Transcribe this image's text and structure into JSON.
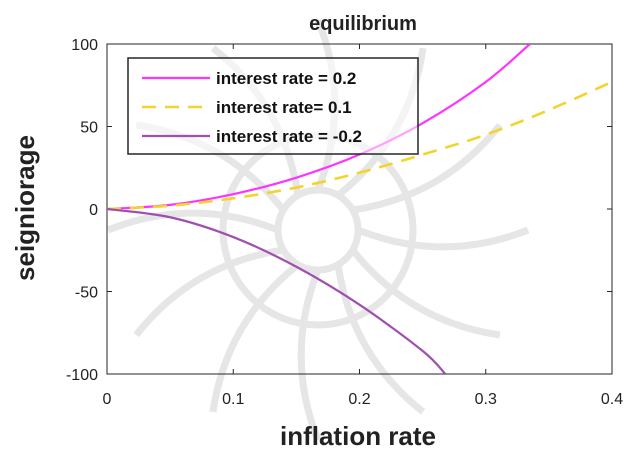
{
  "chart_data": {
    "type": "line",
    "title": "equilibrium",
    "xlabel": "inflation rate",
    "ylabel": "seigniorage",
    "xlim": [
      0,
      0.4
    ],
    "ylim": [
      -100,
      100
    ],
    "xticks": [
      0,
      0.1,
      0.2,
      0.3,
      0.4
    ],
    "xtick_labels": [
      "0",
      "0.1",
      "0.2",
      "0.3",
      "0.4"
    ],
    "yticks": [
      -100,
      -50,
      0,
      50,
      100
    ],
    "ytick_labels": [
      "-100",
      "-50",
      "0",
      "50",
      "100"
    ],
    "grid": false,
    "legend_position": "top-left",
    "series": [
      {
        "name": "interest rate = 0.2",
        "color": "#ff33ff",
        "style": "solid",
        "x": [
          0,
          0.05,
          0.1,
          0.15,
          0.2,
          0.25,
          0.3,
          0.335
        ],
        "y": [
          0,
          2.5,
          9,
          19,
          33,
          52,
          77,
          100
        ]
      },
      {
        "name": "interest rate= 0.1",
        "color": "#f2d52a",
        "style": "dashed",
        "x": [
          0,
          0.05,
          0.1,
          0.15,
          0.2,
          0.25,
          0.3,
          0.35,
          0.4
        ],
        "y": [
          0,
          2,
          6.5,
          13,
          22,
          33,
          45,
          60,
          77
        ]
      },
      {
        "name": "interest rate = -0.2",
        "color": "#a04fb0",
        "style": "solid",
        "x": [
          0,
          0.05,
          0.1,
          0.15,
          0.2,
          0.25,
          0.268
        ],
        "y": [
          0,
          -5,
          -17,
          -35,
          -58,
          -86,
          -100
        ]
      }
    ]
  }
}
